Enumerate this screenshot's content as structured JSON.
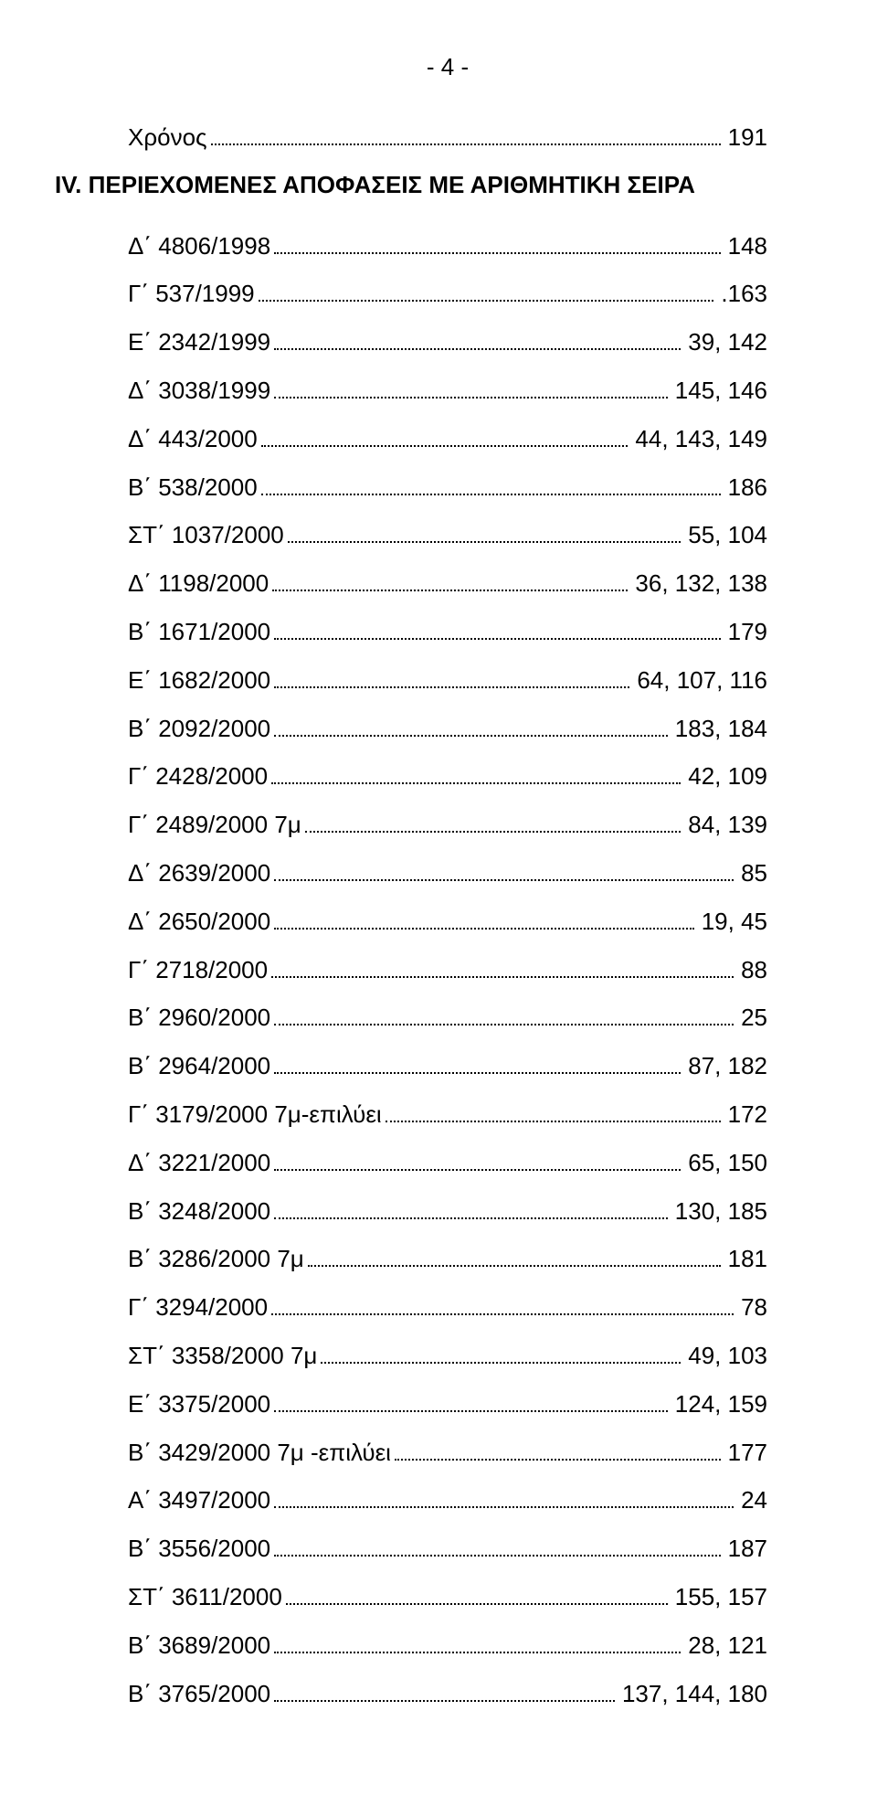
{
  "page_number": "- 4 -",
  "heading": "IV. ΠΕΡΙΕΧΟΜΕΝΕΣ ΑΠΟΦΑΣΕΙΣ ΜΕ ΑΡΙΘΜΗΤΙΚΗ ΣΕΙΡΑ",
  "top_line": {
    "label": "Χρόνος",
    "value": "191"
  },
  "entries": [
    {
      "label": "Δ΄ 4806/1998",
      "value": "148"
    },
    {
      "label": "Γ΄ 537/1999",
      "value": ".163"
    },
    {
      "label": "Ε΄ 2342/1999",
      "value": "39, 142"
    },
    {
      "label": "Δ΄ 3038/1999",
      "value": "145, 146"
    },
    {
      "label": "Δ΄ 443/2000",
      "value": "44, 143, 149"
    },
    {
      "label": "Β΄ 538/2000",
      "value": "186"
    },
    {
      "label": "ΣΤ΄ 1037/2000",
      "value": "55, 104"
    },
    {
      "label": "Δ΄ 1198/2000",
      "value": "36, 132, 138"
    },
    {
      "label": "Β΄ 1671/2000",
      "value": "179"
    },
    {
      "label": "Ε΄ 1682/2000",
      "value": "64, 107, 116"
    },
    {
      "label": "Β΄ 2092/2000",
      "value": "183, 184"
    },
    {
      "label": "Γ΄ 2428/2000",
      "value": "42, 109"
    },
    {
      "label": "Γ΄ 2489/2000 7μ",
      "value": "84, 139"
    },
    {
      "label": "Δ΄ 2639/2000",
      "value": "85"
    },
    {
      "label": "Δ΄ 2650/2000",
      "value": "19, 45"
    },
    {
      "label": "Γ΄ 2718/2000",
      "value": "88"
    },
    {
      "label": "Β΄ 2960/2000",
      "value": "25"
    },
    {
      "label": "Β΄ 2964/2000",
      "value": "87, 182"
    },
    {
      "label": "Γ΄ 3179/2000 7μ-επιλύει",
      "value": "172"
    },
    {
      "label": "Δ΄ 3221/2000",
      "value": "65, 150"
    },
    {
      "label": "Β΄ 3248/2000",
      "value": "130, 185"
    },
    {
      "label": "Β΄ 3286/2000 7μ",
      "value": "181"
    },
    {
      "label": "Γ΄ 3294/2000",
      "value": "78"
    },
    {
      "label": "ΣΤ΄ 3358/2000 7μ",
      "value": "49, 103"
    },
    {
      "label": "Ε΄ 3375/2000",
      "value": "124, 159"
    },
    {
      "label": "Β΄ 3429/2000 7μ -επιλύει",
      "value": "177"
    },
    {
      "label": "Α΄ 3497/2000",
      "value": "24"
    },
    {
      "label": "Β΄ 3556/2000",
      "value": "187"
    },
    {
      "label": "ΣΤ΄ 3611/2000",
      "value": "155, 157"
    },
    {
      "label": "Β΄ 3689/2000",
      "value": "28, 121"
    },
    {
      "label": "Β΄ 3765/2000",
      "value": "137, 144, 180"
    }
  ]
}
